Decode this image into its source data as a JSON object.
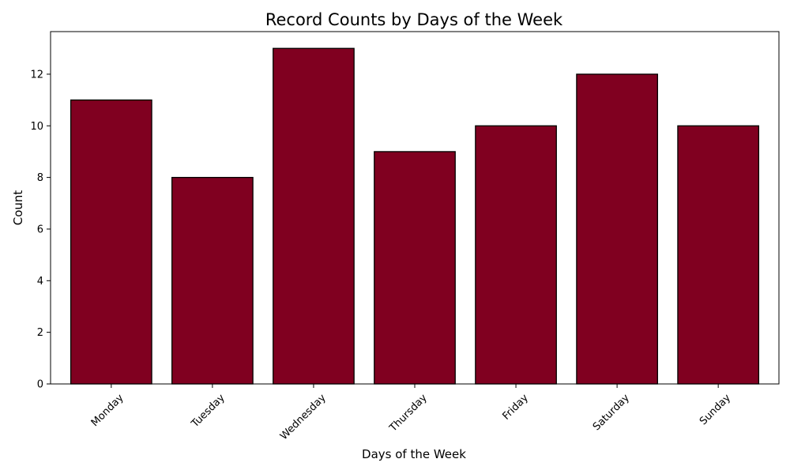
{
  "chart_data": {
    "type": "bar",
    "title": "Record Counts by Days of the Week",
    "xlabel": "Days of the Week",
    "ylabel": "Count",
    "categories": [
      "Monday",
      "Tuesday",
      "Wednesday",
      "Thursday",
      "Friday",
      "Saturday",
      "Sunday"
    ],
    "values": [
      11,
      8,
      13,
      9,
      10,
      12,
      10
    ],
    "ylim": [
      0,
      13.65
    ],
    "yticks": [
      0,
      2,
      4,
      6,
      8,
      10,
      12
    ],
    "ytick_labels": [
      "0",
      "2",
      "4",
      "6",
      "8",
      "10",
      "12"
    ],
    "grid": false,
    "bar_color": "#800020",
    "bar_edge_color": "#000000"
  }
}
